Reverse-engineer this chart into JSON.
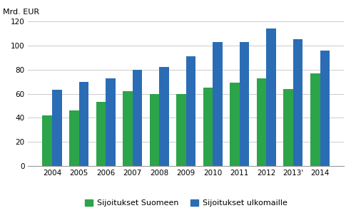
{
  "years": [
    "2004",
    "2005",
    "2006",
    "2007",
    "2008",
    "2009",
    "2010",
    "2011",
    "2012",
    "2013'",
    "2014"
  ],
  "sijoitukset_suomeen": [
    42,
    46,
    53,
    62,
    60,
    60,
    65,
    69,
    73,
    64,
    77
  ],
  "sijoitukset_ulkomaille": [
    63,
    70,
    73,
    80,
    82,
    91,
    103,
    103,
    114,
    105,
    96
  ],
  "color_green": "#2CA44A",
  "color_blue": "#2A6DB5",
  "ylim": [
    0,
    120
  ],
  "yticks": [
    0,
    20,
    40,
    60,
    80,
    100,
    120
  ],
  "ylabel": "Mrd. EUR",
  "legend_green": "Sijoitukset Suomeen",
  "legend_blue": "Sijoitukset ulkomaille",
  "background_color": "#ffffff",
  "bar_width": 0.36
}
